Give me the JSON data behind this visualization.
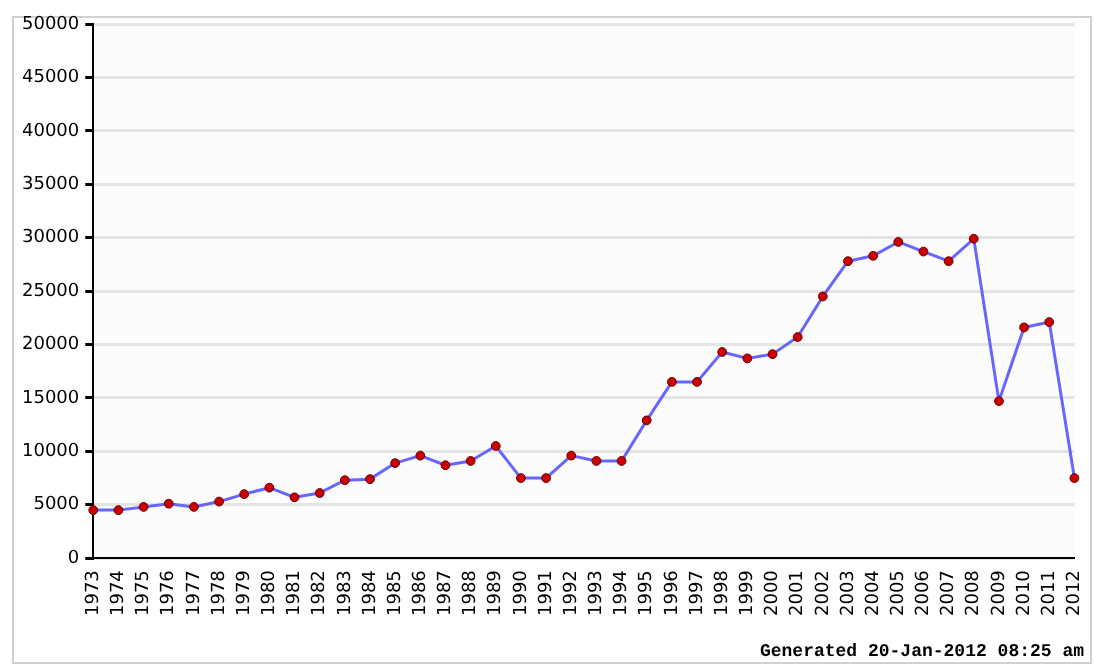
{
  "chart_data": {
    "type": "line",
    "categories": [
      "1973",
      "1974",
      "1975",
      "1976",
      "1977",
      "1978",
      "1979",
      "1980",
      "1981",
      "1982",
      "1983",
      "1984",
      "1985",
      "1986",
      "1987",
      "1988",
      "1989",
      "1990",
      "1991",
      "1992",
      "1993",
      "1994",
      "1995",
      "1996",
      "1997",
      "1998",
      "1999",
      "2000",
      "2001",
      "2002",
      "2003",
      "2004",
      "2005",
      "2006",
      "2007",
      "2008",
      "2009",
      "2010",
      "2011",
      "2012"
    ],
    "series": [
      {
        "color": "#6666ff",
        "values": [
          4500,
          4500,
          4800,
          5100,
          4800,
          5300,
          6000,
          6600,
          5700,
          6100,
          7300,
          7400,
          8900,
          9600,
          8700,
          9100,
          10500,
          7500,
          7500,
          9600,
          9100,
          9100,
          12900,
          16500,
          16500,
          19300,
          18700,
          19100,
          20700,
          24500,
          27800,
          28300,
          29600,
          28700,
          27800,
          29900,
          14700,
          21600,
          22100,
          7500
        ]
      }
    ],
    "ylim": [
      0,
      50000
    ],
    "yticks": [
      0,
      5000,
      10000,
      15000,
      20000,
      25000,
      30000,
      35000,
      40000,
      45000,
      50000
    ],
    "grid": "y",
    "legend": false,
    "marker": "circle",
    "annotations": [
      "Generated 20-Jan-2012 08:25 am"
    ]
  }
}
